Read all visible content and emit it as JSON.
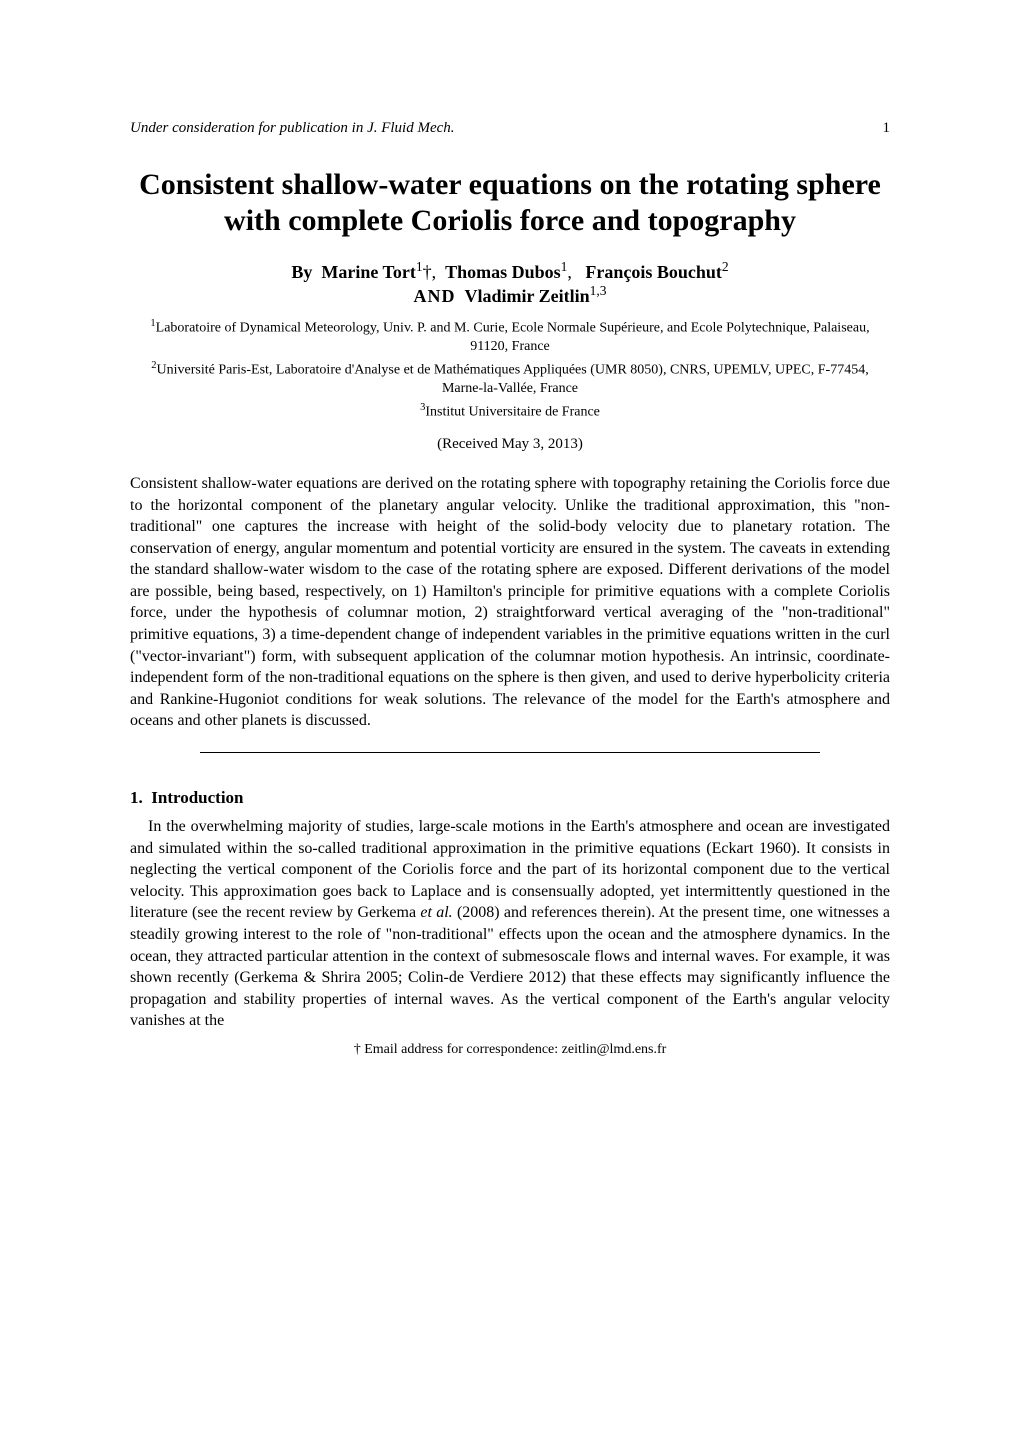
{
  "header": {
    "journal": "Under consideration for publication in J. Fluid Mech.",
    "page_number": "1"
  },
  "title": "Consistent shallow-water equations on the rotating sphere with complete Coriolis force and topography",
  "authors": {
    "by": "By",
    "name1": "Marine Tort",
    "sup1": "1",
    "dagger": "†,",
    "name2": "Thomas Dubos",
    "sup2": "1",
    "comma2": ",",
    "name3": "François Bouchut",
    "sup3": "2",
    "and": "AND",
    "name4": "Vladimir Zeitlin",
    "sup4": "1,3"
  },
  "affiliations": {
    "aff1_sup": "1",
    "aff1": "Laboratoire of Dynamical Meteorology, Univ. P. and M. Curie, Ecole Normale Supérieure, and Ecole Polytechnique, Palaiseau, 91120, France",
    "aff2_sup": "2",
    "aff2": "Université Paris-Est, Laboratoire d'Analyse et de Mathématiques Appliquées (UMR 8050), CNRS, UPEMLV, UPEC, F-77454, Marne-la-Vallée, France",
    "aff3_sup": "3",
    "aff3": "Institut Universitaire de France"
  },
  "received": "(Received May 3, 2013)",
  "abstract": "Consistent shallow-water equations are derived on the rotating sphere with topography retaining the Coriolis force due to the horizontal component of the planetary angular velocity. Unlike the traditional approximation, this \"non-traditional\" one captures the increase with height of the solid-body velocity due to planetary rotation. The conservation of energy, angular momentum and potential vorticity are ensured in the system. The caveats in extending the standard shallow-water wisdom to the case of the rotating sphere are exposed. Different derivations of the model are possible, being based, respectively, on 1) Hamilton's principle for primitive equations with a complete Coriolis force, under the hypothesis of columnar motion, 2) straightforward vertical averaging of the \"non-traditional\" primitive equations, 3) a time-dependent change of independent variables in the primitive equations written in the curl (\"vector-invariant\") form, with subsequent application of the columnar motion hypothesis. An intrinsic, coordinate-independent form of the non-traditional equations on the sphere is then given, and used to derive hyperbolicity criteria and Rankine-Hugoniot conditions for weak solutions. The relevance of the model for the Earth's atmosphere and oceans and other planets is discussed.",
  "section": {
    "number": "1.",
    "title": "Introduction"
  },
  "body_part1": "In the overwhelming majority of studies, large-scale motions in the Earth's atmosphere and ocean are investigated and simulated within the so-called traditional approximation in the primitive equations (Eckart 1960). It consists in neglecting the vertical component of the Coriolis force and the part of its horizontal component due to the vertical velocity. This approximation goes back to Laplace and is consensually adopted, yet intermittently questioned in the literature (see the recent review by Gerkema ",
  "body_etal": "et al.",
  "body_part2": " (2008) and references therein). At the present time, one witnesses a steadily growing interest to the role of \"non-traditional\" effects upon the ocean and the atmosphere dynamics. In the ocean, they attracted particular attention in the context of submesoscale flows and internal waves. For example, it was shown recently (Gerkema & Shrira 2005; Colin-de Verdiere 2012) that these effects may significantly influence the propagation and stability properties of internal waves. As the vertical component of the Earth's angular velocity vanishes at the",
  "footnote": "† Email address for correspondence: zeitlin@lmd.ens.fr"
}
